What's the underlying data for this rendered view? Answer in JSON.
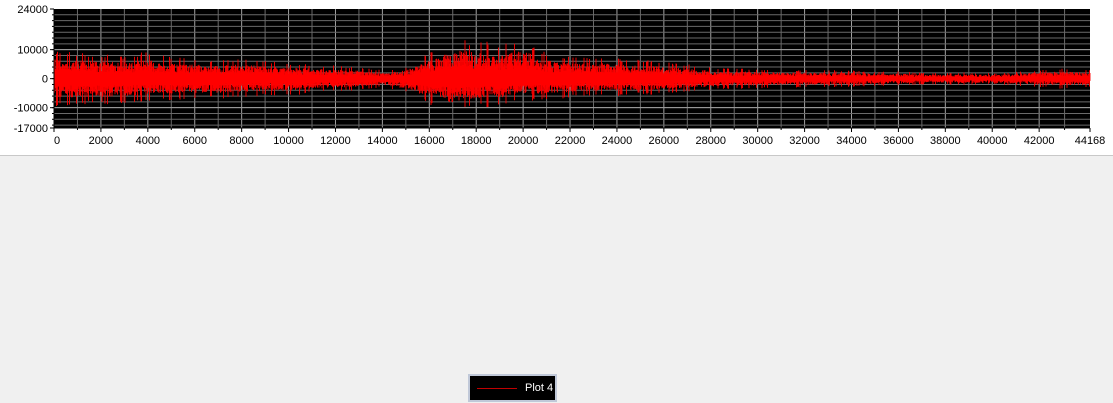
{
  "chart_data": {
    "type": "line",
    "title": "",
    "xlabel": "",
    "ylabel": "",
    "xlim": [
      0,
      44168
    ],
    "ylim": [
      -17000,
      24000
    ],
    "x_ticks": [
      0,
      2000,
      4000,
      6000,
      8000,
      10000,
      12000,
      14000,
      16000,
      18000,
      20000,
      22000,
      24000,
      26000,
      28000,
      30000,
      32000,
      34000,
      36000,
      38000,
      40000,
      42000,
      44168
    ],
    "y_ticks": [
      -17000,
      -10000,
      0,
      10000,
      24000
    ],
    "grid": true,
    "background": "#000000",
    "grid_color": "#a0a0a0",
    "legend_position": "bottom-center",
    "series": [
      {
        "name": "Plot 4",
        "color": "#ff0000",
        "envelope_x": [
          0,
          1000,
          2000,
          3000,
          4000,
          5000,
          6000,
          7000,
          8000,
          9000,
          10000,
          11000,
          12000,
          13000,
          14000,
          15000,
          16000,
          16500,
          17000,
          17500,
          18000,
          18500,
          19000,
          19500,
          20000,
          21000,
          22000,
          23000,
          24000,
          25000,
          26000,
          27000,
          28000,
          29000,
          30000,
          31000,
          32000,
          33000,
          34000,
          35000,
          36000,
          37000,
          38000,
          39000,
          40000,
          41000,
          42000,
          43000,
          44168
        ],
        "envelope_upper": [
          10000,
          9000,
          8500,
          8000,
          9500,
          7500,
          7000,
          6500,
          7000,
          6000,
          5500,
          5000,
          4500,
          4000,
          3000,
          4000,
          9000,
          11000,
          13500,
          14000,
          12500,
          13000,
          11000,
          13000,
          14000,
          9000,
          7500,
          8000,
          7000,
          6500,
          6000,
          5000,
          4000,
          3500,
          3500,
          3000,
          3000,
          3000,
          2800,
          2500,
          2500,
          2000,
          2000,
          2200,
          1800,
          2500,
          3000,
          3500,
          3000
        ],
        "envelope_lower": [
          -10000,
          -9000,
          -9000,
          -8500,
          -8000,
          -7500,
          -7000,
          -7000,
          -6500,
          -6000,
          -6000,
          -5000,
          -4500,
          -4000,
          -3000,
          -5000,
          -9000,
          -10500,
          -12000,
          -11000,
          -10000,
          -10000,
          -9500,
          -8500,
          -8000,
          -7500,
          -6500,
          -6000,
          -6000,
          -5500,
          -5500,
          -4500,
          -4000,
          -3500,
          -3500,
          -3000,
          -3000,
          -3000,
          -2800,
          -2500,
          -2500,
          -2000,
          -2000,
          -2200,
          -2000,
          -2500,
          -3000,
          -3500,
          -3000
        ]
      }
    ]
  }
}
